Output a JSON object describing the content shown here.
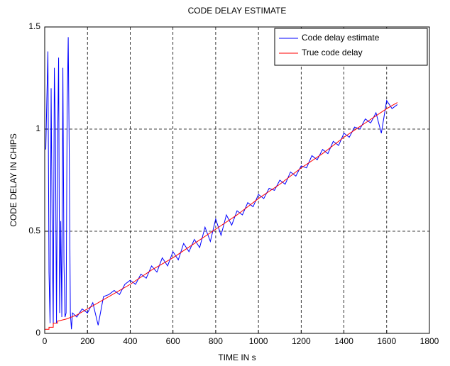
{
  "chart_data": {
    "type": "line",
    "title": "CODE DELAY ESTIMATE",
    "xlabel": "TIME IN s",
    "ylabel": "CODE DELAY IN CHIPS",
    "xlim": [
      0,
      1800
    ],
    "xticks": [
      0,
      200,
      400,
      600,
      800,
      1000,
      1200,
      1400,
      1600,
      1800
    ],
    "ylim": [
      0,
      1.5
    ],
    "yticks": [
      0,
      0.5,
      1,
      1.5
    ],
    "grid": true,
    "legend": "northeast",
    "series": [
      {
        "name": "Code delay estimate",
        "color": "#0000ff",
        "x": [
          5,
          10,
          15,
          20,
          25,
          30,
          35,
          40,
          45,
          50,
          55,
          60,
          65,
          70,
          75,
          80,
          85,
          90,
          95,
          100,
          105,
          110,
          115,
          120,
          125,
          130,
          150,
          175,
          200,
          225,
          250,
          275,
          300,
          325,
          350,
          375,
          400,
          425,
          450,
          475,
          500,
          525,
          550,
          575,
          600,
          625,
          650,
          675,
          700,
          725,
          750,
          775,
          800,
          825,
          850,
          875,
          900,
          925,
          950,
          975,
          1000,
          1025,
          1050,
          1075,
          1100,
          1125,
          1150,
          1175,
          1200,
          1225,
          1250,
          1275,
          1300,
          1325,
          1350,
          1375,
          1400,
          1425,
          1450,
          1475,
          1500,
          1525,
          1550,
          1575,
          1600,
          1625,
          1650
        ],
        "values": [
          0.9,
          1.15,
          1.38,
          0.3,
          0.05,
          1.2,
          0.5,
          0.05,
          1.3,
          1.0,
          0.05,
          0.9,
          1.35,
          0.1,
          0.55,
          0.08,
          1.3,
          0.35,
          0.08,
          0.1,
          1.1,
          1.45,
          0.85,
          0.1,
          0.02,
          0.1,
          0.08,
          0.12,
          0.1,
          0.15,
          0.04,
          0.18,
          0.19,
          0.21,
          0.19,
          0.24,
          0.26,
          0.24,
          0.29,
          0.27,
          0.33,
          0.3,
          0.37,
          0.33,
          0.4,
          0.36,
          0.44,
          0.4,
          0.46,
          0.42,
          0.52,
          0.45,
          0.56,
          0.48,
          0.58,
          0.53,
          0.6,
          0.58,
          0.64,
          0.62,
          0.68,
          0.66,
          0.71,
          0.7,
          0.75,
          0.73,
          0.79,
          0.77,
          0.82,
          0.81,
          0.87,
          0.85,
          0.9,
          0.88,
          0.94,
          0.92,
          0.98,
          0.96,
          1.01,
          1.0,
          1.05,
          1.03,
          1.08,
          0.98,
          1.14,
          1.1,
          1.12
        ]
      },
      {
        "name": "True code delay",
        "color": "#ff0000",
        "x": [
          0,
          20,
          20,
          40,
          40,
          60,
          60,
          100,
          150,
          200,
          300,
          400,
          500,
          600,
          700,
          800,
          900,
          1000,
          1100,
          1200,
          1300,
          1400,
          1500,
          1600,
          1650
        ],
        "values": [
          0.02,
          0.02,
          0.03,
          0.03,
          0.05,
          0.05,
          0.06,
          0.07,
          0.09,
          0.12,
          0.18,
          0.24,
          0.31,
          0.37,
          0.44,
          0.51,
          0.58,
          0.66,
          0.73,
          0.81,
          0.88,
          0.96,
          1.03,
          1.1,
          1.13
        ]
      }
    ]
  }
}
